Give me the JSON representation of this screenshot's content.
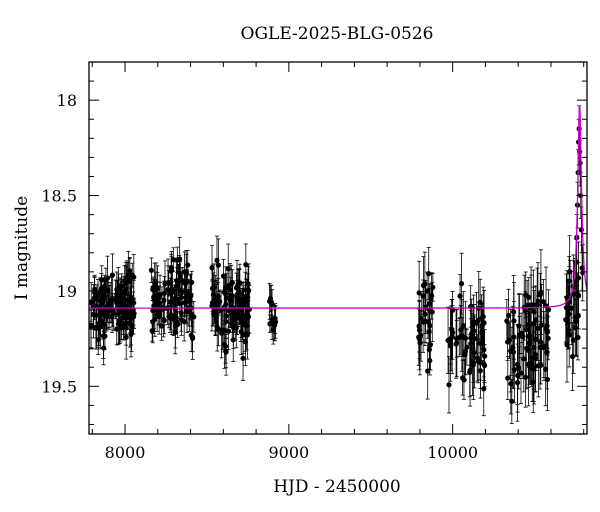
{
  "chart_data": {
    "type": "scatter",
    "title": "OGLE-2025-BLG-0526",
    "xlabel": "HJD - 2450000",
    "ylabel": "I magnitude",
    "xlim": [
      7780,
      10820
    ],
    "ylim": [
      19.75,
      17.8
    ],
    "y_inverted": true,
    "x_ticks": [
      8000,
      9000,
      10000
    ],
    "y_ticks": [
      18,
      18.5,
      19,
      19.5
    ],
    "grid": false,
    "baseline_mag": 19.09,
    "colors": {
      "points": "#000000",
      "model": "#cc00cc"
    },
    "seasons": [
      {
        "x": [
          7790,
          8060
        ],
        "mean": 19.08,
        "spread": 0.11,
        "err": 0.09,
        "n": 120
      },
      {
        "x": [
          8160,
          8420
        ],
        "mean": 19.05,
        "spread": 0.12,
        "err": 0.09,
        "n": 110
      },
      {
        "x": [
          8530,
          8760
        ],
        "mean": 19.1,
        "spread": 0.13,
        "err": 0.1,
        "n": 110
      },
      {
        "x": [
          8880,
          8925
        ],
        "mean": 19.12,
        "spread": 0.08,
        "err": 0.07,
        "n": 12
      },
      {
        "x": [
          9790,
          9880
        ],
        "mean": 19.15,
        "spread": 0.14,
        "err": 0.12,
        "n": 30
      },
      {
        "x": [
          9970,
          10200
        ],
        "mean": 19.22,
        "spread": 0.17,
        "err": 0.14,
        "n": 60
      },
      {
        "x": [
          10330,
          10590
        ],
        "mean": 19.26,
        "spread": 0.18,
        "err": 0.16,
        "n": 80
      },
      {
        "x": [
          10690,
          10800
        ],
        "mean": 19.1,
        "spread": 0.14,
        "err": 0.14,
        "n": 30
      }
    ],
    "event": {
      "t0": 10775,
      "peak_mag": 18.03,
      "points": [
        [
          10748,
          18.95
        ],
        [
          10754,
          18.85
        ],
        [
          10758,
          18.72
        ],
        [
          10762,
          18.55
        ],
        [
          10766,
          18.38
        ],
        [
          10769,
          18.22
        ],
        [
          10772,
          18.15
        ],
        [
          10775,
          18.27
        ],
        [
          10778,
          18.33
        ],
        [
          10782,
          18.5
        ],
        [
          10786,
          18.68
        ],
        [
          10790,
          18.88
        ]
      ]
    }
  }
}
